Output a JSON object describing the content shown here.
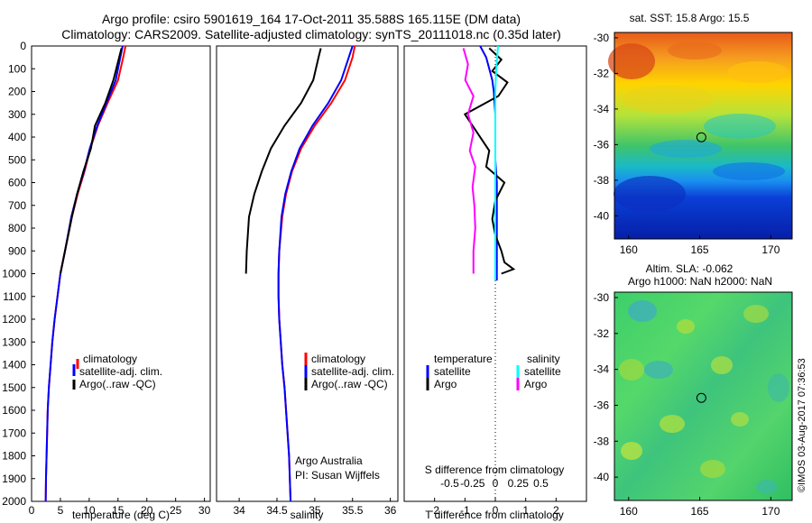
{
  "header": {
    "line1": "Argo profile: csiro 5901619_164 17-Oct-2011 35.588S 165.115E (DM data)",
    "line2": "Climatology: CARS2009. Satellite-adjusted climatology: synTS_20111018.nc (0.35d later)"
  },
  "credit": {
    "line1": "Argo Australia",
    "line2": "PI: Susan Wijffels"
  },
  "watermark": "©IMOS 03-Aug-2017 07:36:53",
  "colors": {
    "climatology": "#ff0000",
    "satellite": "#0000ff",
    "argo": "#000000",
    "salinity_sat": "#00ffff",
    "salinity_argo": "#ff00ff"
  },
  "chart_data": [
    {
      "type": "line",
      "xlabel": "temperature (deg C)",
      "ylabel": "",
      "xlim": [
        0,
        31
      ],
      "ylim": [
        2000,
        0
      ],
      "xticks": [
        0,
        5,
        10,
        15,
        20,
        25,
        30
      ],
      "yticks": [
        0,
        100,
        200,
        300,
        400,
        500,
        600,
        700,
        800,
        900,
        1000,
        1100,
        1200,
        1300,
        1400,
        1500,
        1600,
        1700,
        1800,
        1900,
        2000
      ],
      "legend": [
        "climatology",
        "satellite-adj. clim.",
        "Argo(..raw -QC)"
      ],
      "series": [
        {
          "name": "climatology",
          "color": "#ff0000",
          "x": [
            16.3,
            15.9,
            15.0,
            13.2,
            11.5,
            10.2,
            9.2,
            8.0,
            7.0,
            5.8,
            5.0,
            4.5,
            4.0,
            3.6,
            3.3,
            3.0,
            2.8,
            2.7,
            2.6,
            2.5,
            2.45
          ],
          "y": [
            0,
            50,
            150,
            250,
            350,
            450,
            550,
            650,
            750,
            900,
            1000,
            1100,
            1200,
            1300,
            1400,
            1500,
            1600,
            1700,
            1800,
            1900,
            2000
          ]
        },
        {
          "name": "satellite-adj. clim.",
          "color": "#0000ff",
          "x": [
            15.8,
            15.4,
            14.6,
            13.0,
            11.4,
            10.1,
            9.1,
            7.9,
            6.9,
            5.8,
            5.0,
            4.5,
            4.0,
            3.6,
            3.3,
            3.0,
            2.8,
            2.7,
            2.6,
            2.5,
            2.45
          ],
          "y": [
            0,
            50,
            150,
            250,
            350,
            450,
            550,
            650,
            750,
            900,
            1000,
            1100,
            1200,
            1300,
            1400,
            1500,
            1600,
            1700,
            1800,
            1900,
            2000
          ]
        },
        {
          "name": "Argo(..raw -QC)",
          "color": "#000000",
          "x": [
            15.6,
            15.2,
            14.2,
            12.8,
            11.0,
            10.3,
            9.0,
            7.9,
            7.0,
            5.8,
            5.0
          ],
          "y": [
            10,
            50,
            150,
            250,
            350,
            450,
            550,
            650,
            750,
            900,
            1000
          ]
        }
      ]
    },
    {
      "type": "line",
      "xlabel": "salinity",
      "xlim": [
        33.7,
        36.1
      ],
      "ylim": [
        2000,
        0
      ],
      "xticks": [
        34,
        34.5,
        35,
        35.5,
        36
      ],
      "legend": [
        "climatology",
        "satellite-adj. clim.",
        "Argo(..raw -QC)"
      ],
      "series": [
        {
          "name": "climatology",
          "color": "#ff0000",
          "x": [
            35.53,
            35.5,
            35.4,
            35.22,
            35.0,
            34.82,
            34.7,
            34.62,
            34.57,
            34.53,
            34.52,
            34.52,
            34.53,
            34.55,
            34.57,
            34.6,
            34.62,
            34.64,
            34.66,
            34.67,
            34.68
          ],
          "y": [
            0,
            50,
            150,
            250,
            350,
            450,
            550,
            650,
            750,
            900,
            1000,
            1100,
            1200,
            1300,
            1400,
            1500,
            1600,
            1700,
            1800,
            1900,
            2000
          ]
        },
        {
          "name": "satellite-adj. clim.",
          "color": "#0000ff",
          "x": [
            35.5,
            35.45,
            35.35,
            35.18,
            34.97,
            34.8,
            34.69,
            34.61,
            34.56,
            34.53,
            34.52,
            34.52,
            34.53,
            34.55,
            34.57,
            34.6,
            34.62,
            34.64,
            34.66,
            34.67,
            34.68
          ],
          "y": [
            0,
            50,
            150,
            250,
            350,
            450,
            550,
            650,
            750,
            900,
            1000,
            1100,
            1200,
            1300,
            1400,
            1500,
            1600,
            1700,
            1800,
            1900,
            2000
          ]
        },
        {
          "name": "Argo(..raw -QC)",
          "color": "#000000",
          "x": [
            35.08,
            35.05,
            34.98,
            34.82,
            34.6,
            34.42,
            34.3,
            34.2,
            34.13,
            34.1,
            34.09
          ],
          "y": [
            10,
            50,
            150,
            250,
            350,
            450,
            550,
            650,
            750,
            900,
            1000
          ]
        }
      ]
    },
    {
      "type": "line",
      "xlabel": "T difference from climatology",
      "xlabel_top": "S difference from climatology",
      "xlim": [
        -3,
        3
      ],
      "ylim": [
        2000,
        0
      ],
      "xticks": [
        -2,
        -1,
        0,
        1,
        2
      ],
      "xticks_top": [
        -0.5,
        -0.25,
        0,
        0.25,
        0.5
      ],
      "legend_left_title": "temperature",
      "legend_right_title": "salinity",
      "legend_left": [
        "satellite",
        "Argo"
      ],
      "legend_right": [
        "satellite",
        "Argo"
      ],
      "series": [
        {
          "name": "T satellite",
          "color": "#0000ff",
          "x": [
            -0.5,
            -0.3,
            -0.2,
            -0.1,
            -0.05,
            0,
            0,
            0,
            0.05,
            0.05,
            0.05,
            0.05,
            0.05,
            0.05
          ],
          "y": [
            0,
            50,
            100,
            150,
            200,
            300,
            400,
            500,
            600,
            700,
            800,
            900,
            1000,
            1030
          ]
        },
        {
          "name": "T Argo",
          "color": "#000000",
          "x": [
            -0.2,
            0.2,
            -0.1,
            0.4,
            0.1,
            -1.0,
            -0.6,
            -0.2,
            -0.3,
            0.3,
            0,
            -0.1,
            0,
            0.2,
            0.3,
            0.6,
            0.2
          ],
          "y": [
            10,
            60,
            110,
            160,
            220,
            300,
            380,
            460,
            530,
            600,
            680,
            760,
            830,
            900,
            950,
            980,
            1000
          ]
        },
        {
          "name": "S satellite",
          "color": "#00ffff",
          "x": [
            0.03,
            0.02,
            0.01,
            0,
            0,
            0,
            0,
            0,
            0,
            0,
            0,
            0,
            0
          ],
          "y": [
            0,
            50,
            100,
            200,
            300,
            400,
            500,
            600,
            700,
            800,
            900,
            1000,
            1030
          ]
        },
        {
          "name": "S Argo",
          "color": "#ff00ff",
          "x": [
            -0.35,
            -0.3,
            -0.33,
            -0.24,
            -0.3,
            -0.24,
            -0.28,
            -0.22,
            -0.25,
            -0.23,
            -0.22,
            -0.24,
            -0.24
          ],
          "y": [
            10,
            80,
            150,
            220,
            300,
            380,
            460,
            530,
            620,
            700,
            800,
            900,
            1000
          ]
        }
      ]
    }
  ],
  "maps": [
    {
      "title": "sat. SST: 15.8 Argo: 15.5",
      "xlim": [
        159,
        171.5
      ],
      "ylim": [
        -41.3,
        -29.7
      ],
      "xticks": [
        160,
        165,
        170
      ],
      "yticks": [
        -30,
        -32,
        -34,
        -36,
        -38,
        -40
      ],
      "marker": {
        "lon": 165.115,
        "lat": -35.588
      }
    },
    {
      "title_line1": "Altim. SLA: -0.062",
      "title_line2": "Argo h1000: NaN h2000: NaN",
      "xlim": [
        159,
        171.5
      ],
      "ylim": [
        -41.3,
        -29.7
      ],
      "xticks": [
        160,
        165,
        170
      ],
      "yticks": [
        -30,
        -32,
        -34,
        -36,
        -38,
        -40
      ],
      "marker": {
        "lon": 165.115,
        "lat": -35.588
      }
    }
  ]
}
